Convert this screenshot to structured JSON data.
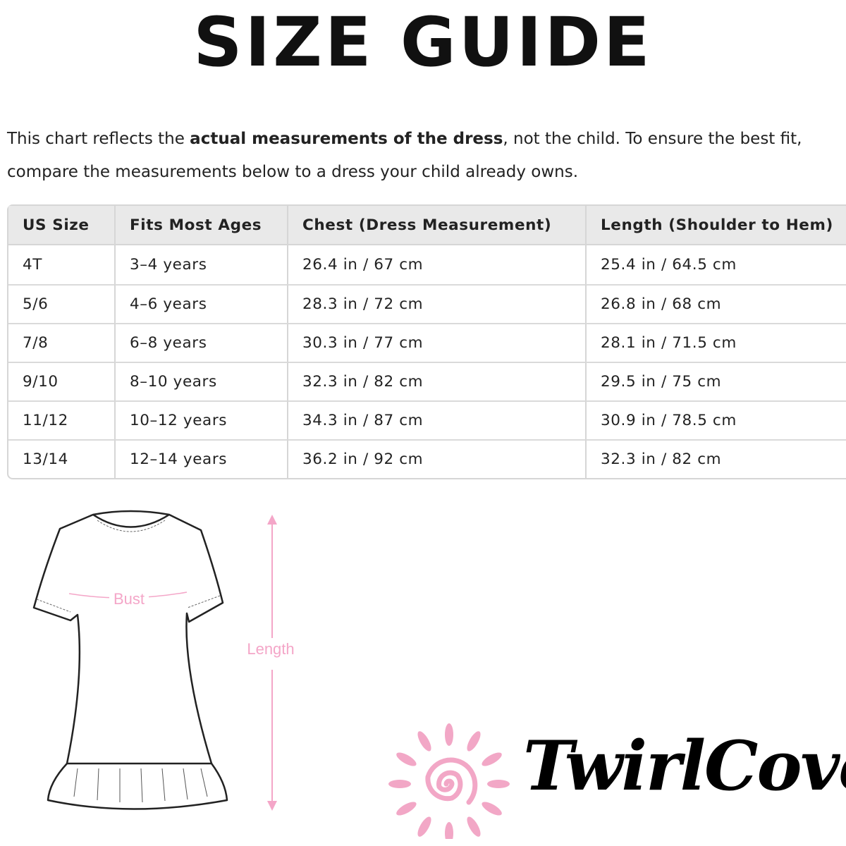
{
  "title": "SIZE GUIDE",
  "intro": {
    "before": "This chart reflects the ",
    "bold": "actual measurements of the dress",
    "after": ", not the child. To ensure the best fit,",
    "line2": "compare the measurements below to a dress your child already owns."
  },
  "table": {
    "headers": [
      "US Size",
      "Fits Most Ages",
      "Chest (Dress Measurement)",
      "Length (Shoulder to Hem)"
    ],
    "rows": [
      [
        "4T",
        "3–4 years",
        "26.4 in / 67 cm",
        "25.4 in / 64.5 cm"
      ],
      [
        "5/6",
        "4–6 years",
        "28.3 in / 72 cm",
        "26.8 in / 68 cm"
      ],
      [
        "7/8",
        "6–8 years",
        "30.3 in / 77 cm",
        "28.1 in / 71.5 cm"
      ],
      [
        "9/10",
        "8–10 years",
        "32.3 in / 82 cm",
        "29.5 in / 75 cm"
      ],
      [
        "11/12",
        "10–12 years",
        "34.3 in / 87 cm",
        "30.9 in / 78.5 cm"
      ],
      [
        "13/14",
        "12–14 years",
        "36.2 in / 92 cm",
        "32.3 in / 82 cm"
      ]
    ]
  },
  "diagram": {
    "bust_label": "Bust",
    "length_label": "Length",
    "accent": "#f4a6c8"
  },
  "brand": {
    "name": "TwirlCove",
    "logo_color": "#f2a7c6"
  }
}
